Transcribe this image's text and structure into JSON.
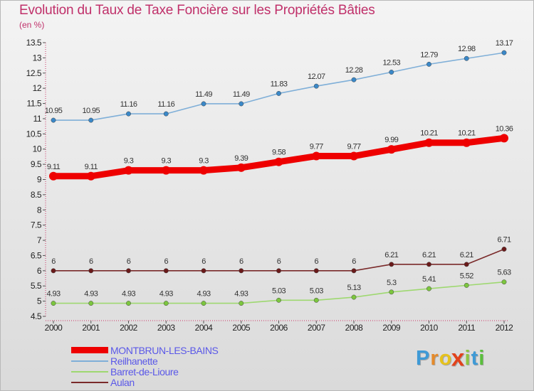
{
  "title": "Evolution du Taux de Taxe Foncière sur les Propriétés Bâties",
  "unit_label": "(en %)",
  "logo": {
    "text": "Proxiti",
    "letters": [
      "P",
      "r",
      "o",
      "x",
      "i",
      "t",
      "i"
    ],
    "letter_colors": [
      "#3f9ad6",
      "#e58a2a",
      "#e6c21c",
      "#e2421b",
      "#8ec63f",
      "#3f9ad6",
      "#5abf3c"
    ]
  },
  "chart_data": {
    "type": "line",
    "title": "Evolution du Taux de Taxe Foncière sur les Propriétés Bâties",
    "ylabel": "(en %)",
    "xlabel": "",
    "ylim": [
      4.5,
      13.5
    ],
    "yticks": [
      4.5,
      5,
      5.5,
      6,
      6.5,
      7,
      7.5,
      8,
      8.5,
      9,
      9.5,
      10,
      10.5,
      11,
      11.5,
      12,
      12.5,
      13,
      13.5
    ],
    "ytick_labels": [
      "4.5",
      "5",
      "5.5",
      "6",
      "6.5",
      "7",
      "7.5",
      "8",
      "8.5",
      "9",
      "9.5",
      "10",
      "10.5",
      "11",
      "11.5",
      "12",
      "12.5",
      "13",
      "13.5"
    ],
    "x": [
      "2000",
      "2001",
      "2002",
      "2003",
      "2004",
      "2005",
      "2006",
      "2007",
      "2008",
      "2009",
      "2010",
      "2011",
      "2012"
    ],
    "grid": false,
    "legend_position": "bottom-left",
    "series": [
      {
        "name": "MONTBRUN-LES-BAINS",
        "color": "#ee0000",
        "marker_color": "#ee0000",
        "thick": true,
        "values": [
          9.11,
          9.11,
          9.3,
          9.3,
          9.3,
          9.39,
          9.58,
          9.77,
          9.77,
          9.99,
          10.21,
          10.21,
          10.36
        ],
        "labels": [
          "9.11",
          "9.11",
          "9.3",
          "9.3",
          "9.3",
          "9.39",
          "9.58",
          "9.77",
          "9.77",
          "9.99",
          "10.21",
          "10.21",
          "10.36"
        ]
      },
      {
        "name": "Reilhanette",
        "color": "#7fafd8",
        "marker_color": "#3a88c8",
        "thick": false,
        "values": [
          10.95,
          10.95,
          11.16,
          11.16,
          11.49,
          11.49,
          11.83,
          12.07,
          12.28,
          12.53,
          12.79,
          12.98,
          13.17
        ],
        "labels": [
          "10.95",
          "10.95",
          "11.16",
          "11.16",
          "11.49",
          "11.49",
          "11.83",
          "12.07",
          "12.28",
          "12.53",
          "12.79",
          "12.98",
          "13.17"
        ]
      },
      {
        "name": "Barret-de-Lioure",
        "color": "#9ed870",
        "marker_color": "#7cc63e",
        "thick": false,
        "values": [
          4.93,
          4.93,
          4.93,
          4.93,
          4.93,
          4.93,
          5.03,
          5.03,
          5.13,
          5.3,
          5.41,
          5.52,
          5.63
        ],
        "labels": [
          "4.93",
          "4.93",
          "4.93",
          "4.93",
          "4.93",
          "4.93",
          "5.03",
          "5.03",
          "5.13",
          "5.3",
          "5.41",
          "5.52",
          "5.63"
        ]
      },
      {
        "name": "Aulan",
        "color": "#7a2a2a",
        "marker_color": "#6a1a1a",
        "thick": false,
        "values": [
          6,
          6,
          6,
          6,
          6,
          6,
          6,
          6,
          6,
          6.21,
          6.21,
          6.21,
          6.71
        ],
        "labels": [
          "6",
          "6",
          "6",
          "6",
          "6",
          "6",
          "6",
          "6",
          "6",
          "6.21",
          "6.21",
          "6.21",
          "6.71"
        ]
      }
    ]
  }
}
